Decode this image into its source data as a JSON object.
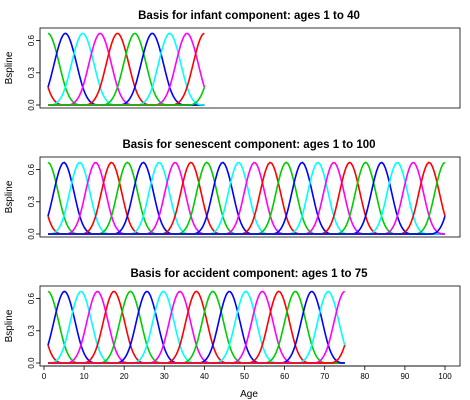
{
  "chart_data": [
    {
      "type": "line",
      "title": "Basis for infant component: ages 1 to 40",
      "ylabel": "Bspline",
      "xlabel": "",
      "x_range": [
        1,
        40
      ],
      "xlim": [
        1,
        100
      ],
      "ylim": [
        0,
        0.68
      ],
      "yticks": [
        "0.0",
        "0.3",
        "0.6"
      ],
      "ytick_values": [
        0,
        0.3,
        0.6
      ],
      "show_xaxis": false,
      "basis_count": 12,
      "basis_peak": 0.667,
      "series_colors": [
        "#FF0000",
        "#00CD00",
        "#0000FF",
        "#00FFFF",
        "#FF00FF"
      ],
      "grid": false
    },
    {
      "type": "line",
      "title": "Basis for senescent component: ages 1 to 100",
      "ylabel": "Bspline",
      "xlabel": "",
      "x_range": [
        1,
        100
      ],
      "xlim": [
        1,
        100
      ],
      "ylim": [
        0,
        0.68
      ],
      "yticks": [
        "0.0",
        "0.3",
        "0.6"
      ],
      "ytick_values": [
        0,
        0.3,
        0.6
      ],
      "show_xaxis": false,
      "basis_count": 28,
      "basis_peak": 0.667,
      "series_colors": [
        "#FF0000",
        "#00CD00",
        "#0000FF",
        "#00FFFF",
        "#FF00FF"
      ],
      "grid": false
    },
    {
      "type": "line",
      "title": "Basis for accident component: ages 1 to 75",
      "ylabel": "Bspline",
      "xlabel": "Age",
      "x_range": [
        1,
        75
      ],
      "xlim": [
        1,
        100
      ],
      "ylim": [
        0,
        0.68
      ],
      "yticks": [
        "0.0",
        "0.3",
        "0.6"
      ],
      "ytick_values": [
        0,
        0.3,
        0.6
      ],
      "show_xaxis": true,
      "xticks": [
        "0",
        "10",
        "20",
        "30",
        "40",
        "50",
        "60",
        "70",
        "80",
        "90",
        "100"
      ],
      "xtick_values": [
        0,
        10,
        20,
        30,
        40,
        50,
        60,
        70,
        80,
        90,
        100
      ],
      "basis_count": 21,
      "basis_peak": 0.667,
      "series_colors": [
        "#FF0000",
        "#00CD00",
        "#0000FF",
        "#00FFFF",
        "#FF00FF"
      ],
      "grid": false
    }
  ]
}
